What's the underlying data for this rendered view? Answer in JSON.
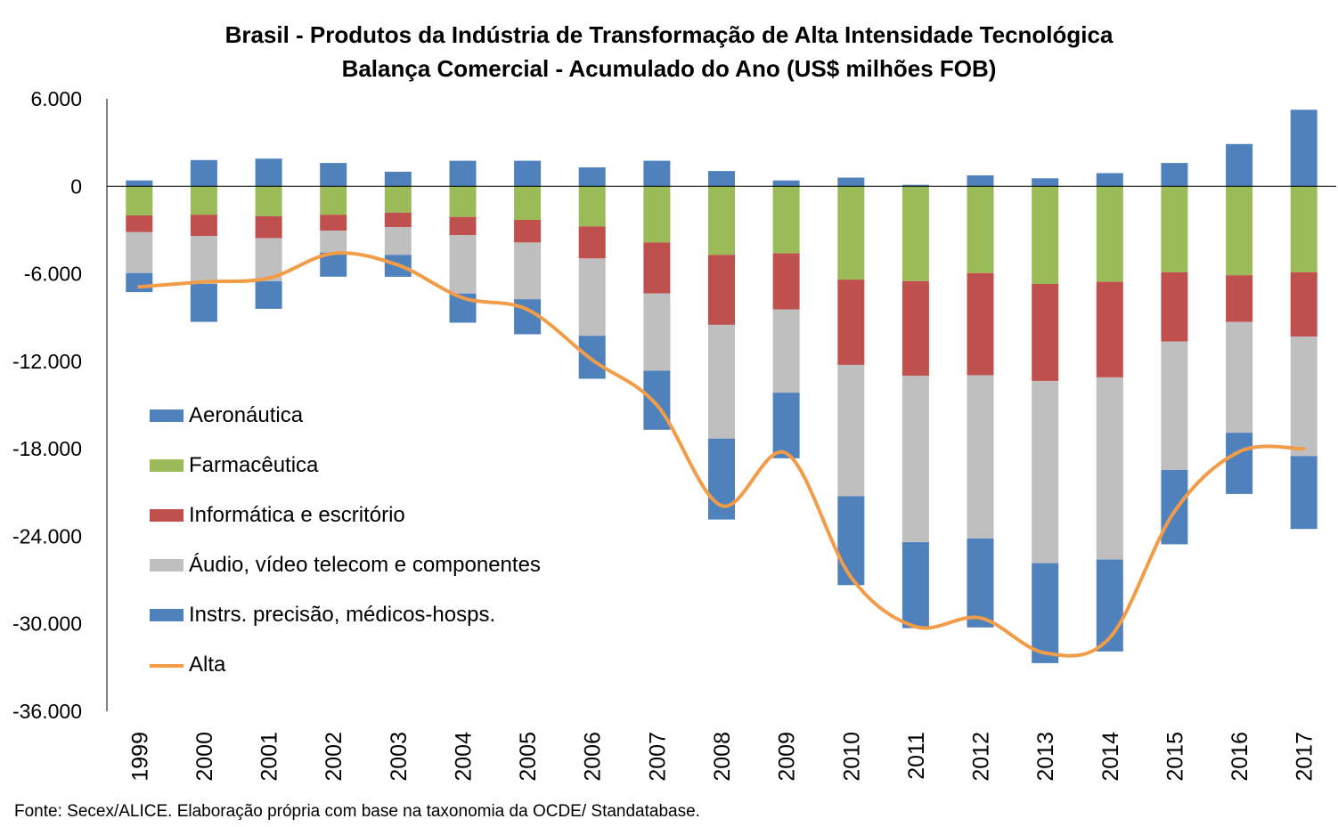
{
  "chart_data": {
    "type": "bar",
    "stacked": true,
    "title": "Brasil - Produtos da Indústria de Transformação de Alta Intensidade Tecnológica",
    "subtitle": "Balança Comercial - Acumulado do Ano (US$ milhões FOB)",
    "xlabel": "",
    "ylabel": "",
    "ylim": [
      -36000,
      6000
    ],
    "yticks": [
      6000,
      0,
      -6000,
      -12000,
      -18000,
      -24000,
      -30000,
      -36000
    ],
    "ytick_labels": [
      "6.000",
      "0",
      "-6.000",
      "-12.000",
      "-18.000",
      "-24.000",
      "-30.000",
      "-36.000"
    ],
    "categories": [
      "1999",
      "2000",
      "2001",
      "2002",
      "2003",
      "2004",
      "2005",
      "2006",
      "2007",
      "2008",
      "2009",
      "2010",
      "2011",
      "2012",
      "2013",
      "2014",
      "2015",
      "2016",
      "2017"
    ],
    "series": [
      {
        "name": "Aeronáutica",
        "color": "#4F81BD",
        "values": [
          400,
          1800,
          1900,
          1600,
          1000,
          1750,
          1750,
          1300,
          1750,
          1050,
          400,
          600,
          100,
          750,
          550,
          900,
          1600,
          2900,
          5250
        ]
      },
      {
        "name": "Farmacêutica",
        "color": "#9BBB59",
        "values": [
          -2000,
          -1950,
          -2050,
          -1950,
          -1800,
          -2100,
          -2300,
          -2750,
          -3850,
          -4700,
          -4600,
          -6400,
          -6500,
          -5950,
          -6700,
          -6550,
          -5900,
          -6100,
          -5900
        ]
      },
      {
        "name": "Informática e escritório",
        "color": "#C0504D",
        "values": [
          -1150,
          -1450,
          -1500,
          -1100,
          -1000,
          -1250,
          -1550,
          -2200,
          -3500,
          -4800,
          -3850,
          -5850,
          -6500,
          -7000,
          -6650,
          -6550,
          -4750,
          -3200,
          -4400
        ]
      },
      {
        "name": "Áudio, vídeo telecom e componentes",
        "color": "#BFBFBF",
        "values": [
          -2800,
          -3300,
          -2950,
          -1500,
          -1900,
          -4000,
          -3900,
          -5300,
          -5300,
          -7800,
          -5700,
          -9000,
          -11400,
          -11200,
          -12500,
          -12500,
          -8800,
          -7600,
          -8200
        ]
      },
      {
        "name": "Instrs. precisão, médicos-hosps.",
        "color": "#4F81BD",
        "values": [
          -1300,
          -2600,
          -1900,
          -1650,
          -1500,
          -2000,
          -2400,
          -2950,
          -4050,
          -5550,
          -4500,
          -6100,
          -5900,
          -6100,
          -6850,
          -6300,
          -5100,
          -4200,
          -5000
        ]
      }
    ],
    "line": {
      "name": "Alta",
      "color": "#F39C48",
      "values": [
        -6900,
        -6550,
        -6300,
        -4600,
        -5400,
        -7650,
        -8450,
        -11900,
        -15000,
        -21900,
        -18300,
        -26800,
        -30200,
        -29600,
        -32000,
        -30950,
        -22300,
        -18200,
        -18000
      ]
    },
    "legend_position": "left-lower-inside",
    "grid": false
  },
  "source": "Fonte: Secex/ALICE. Elaboração própria com base na taxonomia da OCDE/ Standatabase."
}
